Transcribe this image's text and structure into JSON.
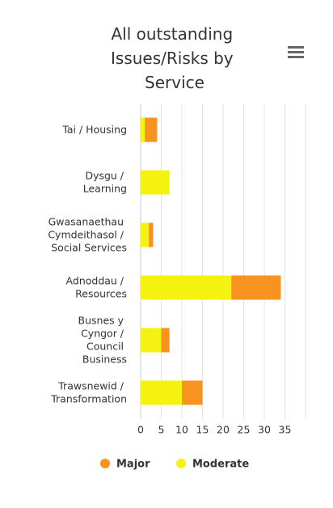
{
  "chart_data": {
    "type": "bar",
    "orientation": "horizontal",
    "stacked": true,
    "title": "All outstanding Issues/Risks by Service",
    "categories": [
      "Tai / Housing",
      "Dysgu / Learning",
      "Gwasanaethau Cymdeithasol / Social Services",
      "Adnoddau / Resources",
      "Busnes y Cyngor / Council Business",
      "Trawsnewid / Transformation"
    ],
    "series": [
      {
        "name": "Moderate",
        "color": "#f5f20f",
        "values": [
          1,
          7,
          2,
          22,
          5,
          10
        ]
      },
      {
        "name": "Major",
        "color": "#f7931e",
        "values": [
          3,
          0,
          1,
          12,
          2,
          5
        ]
      }
    ],
    "legend_order": [
      "Major",
      "Moderate"
    ],
    "xlim": [
      0,
      40
    ],
    "xticks": [
      0,
      5,
      10,
      15,
      20,
      25,
      30,
      35
    ],
    "grid": true
  }
}
